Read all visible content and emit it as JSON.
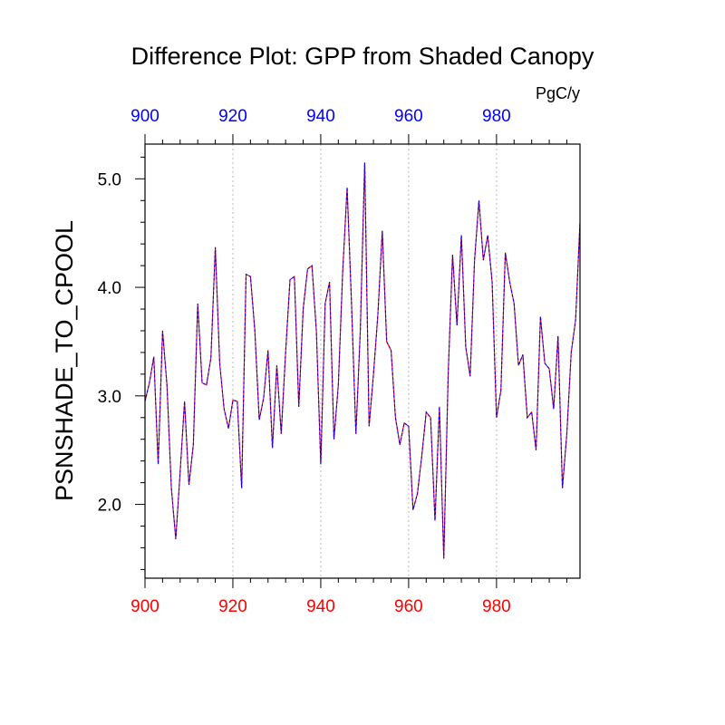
{
  "chart_data": {
    "type": "line",
    "title": "Difference Plot: GPP from Shaded Canopy",
    "units": "PgC/y",
    "ylabel": "PSNSHADE_TO_CPOOL",
    "xlabel": "",
    "xlim": [
      900,
      999
    ],
    "ylim": [
      1.32,
      5.32
    ],
    "x_major_ticks": [
      900,
      920,
      940,
      960,
      980
    ],
    "x_minor_step": 4,
    "y_major_ticks": [
      2.0,
      3.0,
      4.0,
      5.0
    ],
    "y_tick_labels": [
      "2.0",
      "3.0",
      "4.0",
      "5.0"
    ],
    "y_minor_step": 0.2,
    "x_grid": true,
    "colors": {
      "bottom_axis_labels": "#ff0000",
      "top_axis_labels": "#0000ff",
      "series_a": "#ff0000",
      "series_b": "#0000ff"
    },
    "series": [
      {
        "x": [
          900,
          901,
          902,
          903,
          904,
          905,
          906,
          907,
          908,
          909,
          910,
          911,
          912,
          913,
          914,
          915,
          916,
          917,
          918,
          919,
          920,
          921,
          922,
          923,
          924,
          925,
          926,
          927,
          928,
          929,
          930,
          931,
          932,
          933,
          934,
          935,
          936,
          937,
          938,
          939,
          940,
          941,
          942,
          943,
          944,
          945,
          946,
          947,
          948,
          949,
          950,
          951,
          952,
          953,
          954,
          955,
          956,
          957,
          958,
          959,
          960,
          961,
          962,
          963,
          964,
          965,
          966,
          967,
          968,
          969,
          970,
          971,
          972,
          973,
          974,
          975,
          976,
          977,
          978,
          979,
          980,
          981,
          982,
          983,
          984,
          985,
          986,
          987,
          988,
          989,
          990,
          991,
          992,
          993,
          994,
          995,
          996,
          997,
          998,
          999
        ],
        "values": [
          2.95,
          3.12,
          3.36,
          2.37,
          3.6,
          3.1,
          2.15,
          1.68,
          2.3,
          2.95,
          2.18,
          2.55,
          3.85,
          3.12,
          3.1,
          3.35,
          4.37,
          3.3,
          2.88,
          2.7,
          2.96,
          2.95,
          2.15,
          4.12,
          4.1,
          3.6,
          2.78,
          2.98,
          3.42,
          2.52,
          3.28,
          2.65,
          3.4,
          4.07,
          4.1,
          2.9,
          3.8,
          4.17,
          4.2,
          3.6,
          2.37,
          3.85,
          4.05,
          2.6,
          3.1,
          4.15,
          4.92,
          3.85,
          2.65,
          3.6,
          5.15,
          2.72,
          3.2,
          3.75,
          4.52,
          3.5,
          3.42,
          2.8,
          2.55,
          2.75,
          2.72,
          1.95,
          2.1,
          2.45,
          2.85,
          2.8,
          1.85,
          2.9,
          1.5,
          3.2,
          4.3,
          3.65,
          4.48,
          3.45,
          3.18,
          4.25,
          4.8,
          4.25,
          4.48,
          4.05,
          2.8,
          3.05,
          4.32,
          4.05,
          3.85,
          3.28,
          3.38,
          2.8,
          2.85,
          2.5,
          3.73,
          3.3,
          3.25,
          2.88,
          3.55,
          2.15,
          2.65,
          3.4,
          3.7,
          4.6
        ]
      }
    ]
  }
}
